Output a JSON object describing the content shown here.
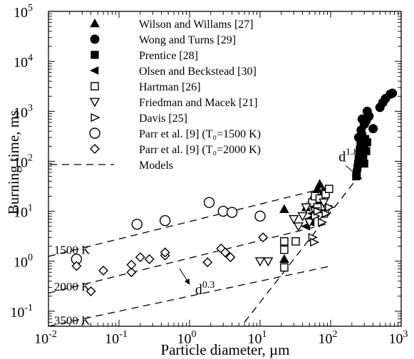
{
  "chart_data": {
    "type": "scatter",
    "x_scale": "log",
    "y_scale": "log",
    "xlim": [
      0.01,
      1000
    ],
    "ylim": [
      0.05,
      100000
    ],
    "xlabel": "Particle diameter, µm",
    "ylabel": "Burning time, ms",
    "grid": false,
    "legend_position": "top-left",
    "x_ticks": [
      {
        "value": 0.01,
        "base": "10",
        "exp": "-2"
      },
      {
        "value": 0.1,
        "base": "10",
        "exp": "-1"
      },
      {
        "value": 1,
        "base": "10",
        "exp": "0"
      },
      {
        "value": 10,
        "base": "10",
        "exp": "1"
      },
      {
        "value": 100,
        "base": "10",
        "exp": "2"
      },
      {
        "value": 1000,
        "base": "10",
        "exp": "3"
      }
    ],
    "y_ticks": [
      {
        "value": 0.1,
        "base": "10",
        "exp": "-1"
      },
      {
        "value": 1,
        "base": "10",
        "exp": "0"
      },
      {
        "value": 10,
        "base": "10",
        "exp": "1"
      },
      {
        "value": 100,
        "base": "10",
        "exp": "2"
      },
      {
        "value": 1000,
        "base": "10",
        "exp": "3"
      },
      {
        "value": 10000,
        "base": "10",
        "exp": "4"
      },
      {
        "value": 100000,
        "base": "10",
        "exp": "5"
      }
    ],
    "series": [
      {
        "name": "Wilson and Willams [27]",
        "marker": "triangle-up",
        "points": [
          [
            22,
            11
          ],
          [
            22,
            1.1
          ],
          [
            60,
            22
          ],
          [
            65,
            28
          ],
          [
            70,
            35
          ],
          [
            55,
            18
          ],
          [
            80,
            25
          ],
          [
            45,
            12
          ]
        ]
      },
      {
        "name": "Wong and Turns [29]",
        "marker": "circle-filled",
        "points": [
          [
            250,
            300
          ],
          [
            270,
            420
          ],
          [
            300,
            550
          ],
          [
            320,
            650
          ],
          [
            350,
            800
          ],
          [
            400,
            450
          ],
          [
            500,
            1200
          ],
          [
            550,
            1500
          ],
          [
            600,
            1800
          ],
          [
            700,
            2200
          ],
          [
            750,
            2300
          ],
          [
            280,
            700
          ],
          [
            330,
            1000
          ]
        ]
      },
      {
        "name": "Prentice [28]",
        "marker": "square-filled",
        "points": [
          [
            230,
            50
          ],
          [
            235,
            60
          ],
          [
            240,
            75
          ],
          [
            245,
            90
          ],
          [
            250,
            110
          ],
          [
            255,
            140
          ],
          [
            260,
            170
          ],
          [
            265,
            210
          ],
          [
            270,
            260
          ],
          [
            280,
            320
          ],
          [
            290,
            130
          ],
          [
            300,
            200
          ],
          [
            310,
            280
          ],
          [
            320,
            160
          ],
          [
            330,
            240
          ],
          [
            300,
            90
          ]
        ]
      },
      {
        "name": "Olsen and Beckstead [30]",
        "marker": "triangle-left",
        "points": [
          [
            45,
            5
          ],
          [
            50,
            7
          ],
          [
            55,
            9
          ],
          [
            60,
            12
          ],
          [
            65,
            15
          ],
          [
            70,
            18
          ],
          [
            52,
            6
          ]
        ]
      },
      {
        "name": "Hartman [26]",
        "marker": "square-open",
        "points": [
          [
            22,
            2.5
          ],
          [
            22,
            1.7
          ],
          [
            22,
            0.75
          ],
          [
            32,
            2.5
          ],
          [
            55,
            15
          ],
          [
            60,
            20
          ],
          [
            70,
            18
          ],
          [
            85,
            22
          ],
          [
            95,
            28
          ],
          [
            65,
            12
          ],
          [
            80,
            9
          ]
        ]
      },
      {
        "name": "Friedman and Macek [21]",
        "marker": "triangle-down",
        "points": [
          [
            10,
            1
          ],
          [
            13,
            1
          ],
          [
            30,
            7
          ],
          [
            35,
            5
          ],
          [
            40,
            8
          ],
          [
            45,
            12
          ],
          [
            50,
            6
          ],
          [
            60,
            10
          ],
          [
            70,
            8
          ],
          [
            80,
            15
          ],
          [
            90,
            11
          ]
        ]
      },
      {
        "name": "Davis [25]",
        "marker": "triangle-right",
        "points": [
          [
            55,
            3
          ],
          [
            58,
            2.4
          ],
          [
            60,
            8
          ],
          [
            65,
            10
          ],
          [
            75,
            6
          ],
          [
            85,
            9
          ],
          [
            95,
            12
          ]
        ]
      },
      {
        "name": "Parr et al. [9] (T₀=1500 K)",
        "marker": "circle-open",
        "points": [
          [
            0.025,
            1.1
          ],
          [
            0.18,
            5.5
          ],
          [
            0.45,
            6.5
          ],
          [
            1.9,
            15
          ],
          [
            3,
            10
          ],
          [
            4,
            9.5
          ],
          [
            10,
            8
          ]
        ]
      },
      {
        "name": "Parr et al. [9] (T₀=2000 K)",
        "marker": "diamond-open",
        "points": [
          [
            0.025,
            0.8
          ],
          [
            0.04,
            0.25
          ],
          [
            0.06,
            0.65
          ],
          [
            0.15,
            0.6
          ],
          [
            0.15,
            0.85
          ],
          [
            0.2,
            1.2
          ],
          [
            0.27,
            1.1
          ],
          [
            0.45,
            1.3
          ],
          [
            0.45,
            1.5
          ],
          [
            1.8,
            0.95
          ],
          [
            2.8,
            1.8
          ],
          [
            3.2,
            1.5
          ],
          [
            3.8,
            1.2
          ],
          [
            11,
            3
          ]
        ]
      }
    ],
    "models": {
      "name": "Models",
      "lines": [
        {
          "label": "1500 K",
          "points": [
            [
              0.01,
              1.25
            ],
            [
              100,
              31
            ]
          ]
        },
        {
          "label": "2000 K",
          "points": [
            [
              0.01,
              0.23
            ],
            [
              100,
              5.8
            ]
          ]
        },
        {
          "label": "3500 K",
          "points": [
            [
              0.01,
              0.05
            ],
            [
              100,
              0.8
            ]
          ]
        },
        {
          "label": "",
          "points": [
            [
              6,
              0.06
            ],
            [
              250,
              50
            ]
          ]
        }
      ]
    },
    "annotations": [
      {
        "text": "d",
        "exp": "1.8",
        "at": [
          130,
          100
        ]
      },
      {
        "text": "d",
        "exp": "0.3",
        "at": [
          1.2,
          0.22
        ]
      }
    ]
  }
}
